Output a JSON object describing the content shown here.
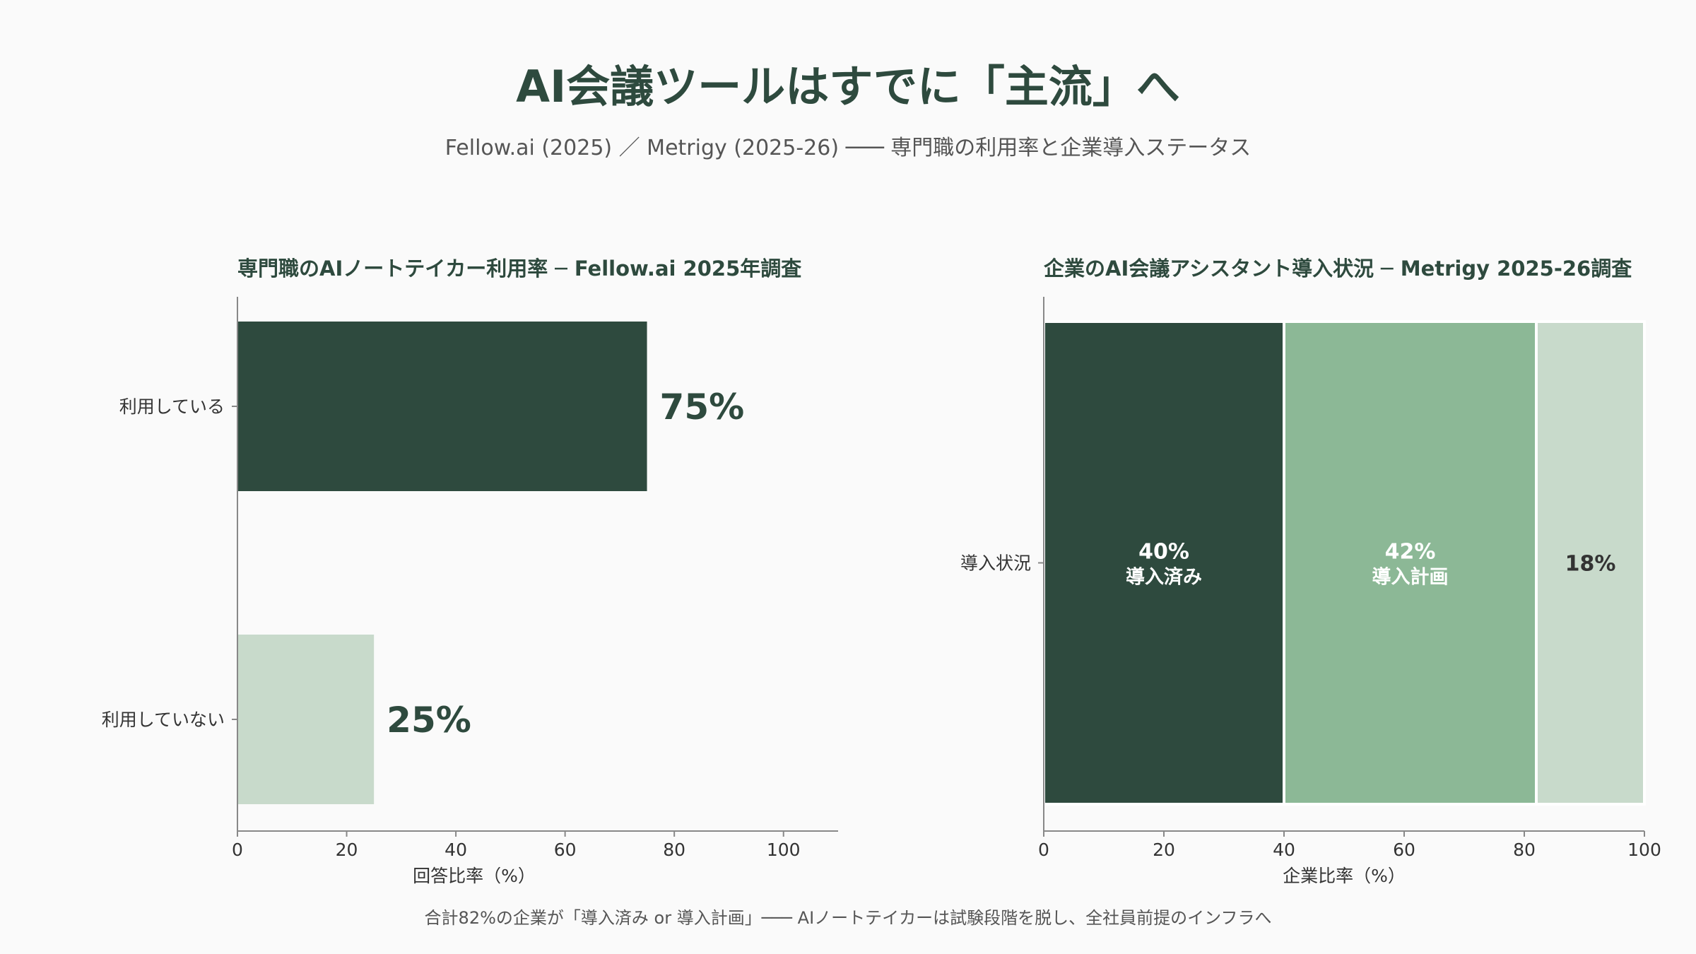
{
  "header": {
    "title": "AI会議ツールはすでに「主流」へ",
    "subtitle": "Fellow.ai (2025) ／ Metrigy (2025-26) ─── 専門職の利用率と企業導入ステータス"
  },
  "footer": {
    "note": "合計82%の企業が「導入済み or 導入計画」─── AIノートテイカーは試験段階を脱し、全社員前提のインフラへ"
  },
  "colors": {
    "dark": "#2e4a3e",
    "mid": "#8cb896",
    "light": "#c8dacb",
    "axis": "#888888",
    "tick_text": "#333333"
  },
  "chart_data": [
    {
      "type": "bar",
      "orientation": "horizontal",
      "title": "専門職のAIノートテイカー利用率 ─ Fellow.ai 2025年調査",
      "xlabel": "回答比率（%）",
      "ylabel": "",
      "xlim": [
        0,
        110
      ],
      "xticks": [
        0,
        20,
        40,
        60,
        80,
        100
      ],
      "categories": [
        "利用している",
        "利用していない"
      ],
      "values": [
        75,
        25
      ],
      "data_labels": [
        "75%",
        "25%"
      ],
      "bar_colors": [
        "#2e4a3e",
        "#c8dacb"
      ],
      "grid": false
    },
    {
      "type": "bar",
      "orientation": "horizontal",
      "stacked": true,
      "title": "企業のAI会議アシスタント導入状況 ─ Metrigy 2025-26調査",
      "xlabel": "企業比率（%）",
      "ylabel": "",
      "xlim": [
        0,
        100
      ],
      "xticks": [
        0,
        20,
        40,
        60,
        80,
        100
      ],
      "categories": [
        "導入状況"
      ],
      "series": [
        {
          "name": "導入済み",
          "values": [
            40
          ],
          "label": "40%",
          "color": "#2e4a3e"
        },
        {
          "name": "導入計画",
          "values": [
            42
          ],
          "label": "42%",
          "color": "#8cb896"
        },
        {
          "name": "",
          "values": [
            18
          ],
          "label": "18%",
          "color": "#c8dacb"
        }
      ],
      "grid": false
    }
  ]
}
